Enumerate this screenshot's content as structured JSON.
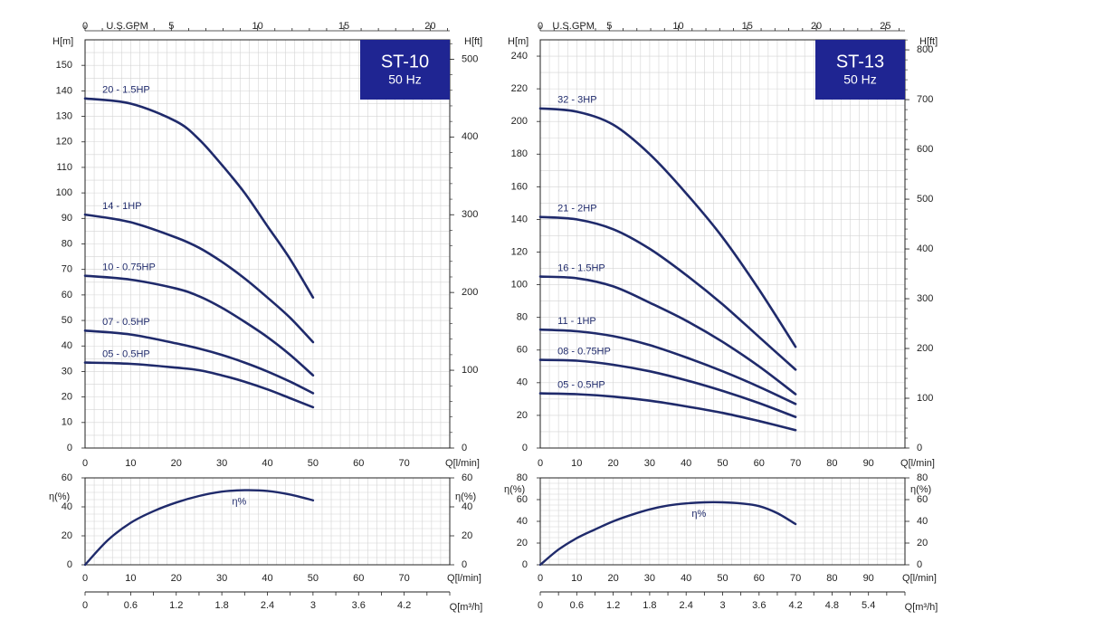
{
  "colors": {
    "curve": "#1f2a6b",
    "badge": "#1f2592",
    "grid": "#d4d4d4",
    "axis": "#222222",
    "label": "#1f2a6b",
    "text": "#222222"
  },
  "chart_data": [
    {
      "type": "line",
      "model": "ST-10",
      "frequency": "50 Hz",
      "ylabel_left": "H[m]",
      "ylabel_right": "H[ft]",
      "xlabel": "Q[l/min]",
      "xlabel_top": "U.S.GPM",
      "xlim": [
        0,
        80
      ],
      "ylim": [
        0,
        160
      ],
      "yticks": [
        0,
        10,
        20,
        30,
        40,
        50,
        60,
        70,
        80,
        90,
        100,
        110,
        120,
        130,
        140,
        150
      ],
      "xticks": [
        10,
        20,
        30,
        40,
        50,
        60,
        70
      ],
      "gpm_ticks": [
        0,
        5,
        10,
        15,
        20
      ],
      "ft_ticks": [
        0,
        100,
        200,
        300,
        400,
        500
      ],
      "series": [
        {
          "name": "20 - 1.5HP",
          "x": [
            0,
            10,
            20,
            25,
            30,
            35,
            40,
            45,
            50
          ],
          "y": [
            137,
            135,
            128,
            121,
            111,
            100,
            87,
            74,
            59
          ]
        },
        {
          "name": "14 - 1HP",
          "x": [
            0,
            10,
            20,
            25,
            30,
            35,
            40,
            45,
            50
          ],
          "y": [
            91.5,
            88.5,
            82.5,
            78.5,
            73,
            66.5,
            59,
            51,
            41.5
          ]
        },
        {
          "name": "10 - 0.75HP",
          "x": [
            0,
            10,
            20,
            25,
            30,
            35,
            40,
            45,
            50
          ],
          "y": [
            67.5,
            66,
            62.5,
            59.5,
            55,
            49.5,
            43.5,
            36.5,
            28.5
          ]
        },
        {
          "name": "07 - 0.5HP",
          "x": [
            0,
            10,
            20,
            25,
            30,
            35,
            40,
            45,
            50
          ],
          "y": [
            46,
            44.5,
            41,
            39,
            36.5,
            33.5,
            30,
            26,
            21.5
          ]
        },
        {
          "name": "05 - 0.5HP",
          "x": [
            0,
            10,
            20,
            25,
            30,
            35,
            40,
            45,
            50
          ],
          "y": [
            33.5,
            33,
            31.5,
            30.5,
            28.5,
            26,
            23,
            19.5,
            16
          ]
        }
      ],
      "efficiency": {
        "label": "η%",
        "ylabel": "η(%)",
        "xlabel": "Q[l/min]",
        "ylim": [
          0,
          60
        ],
        "yticks": [
          0,
          20,
          40,
          60
        ],
        "xticks": [
          0,
          10,
          20,
          30,
          40,
          50,
          60,
          70
        ],
        "x": [
          0,
          5,
          10,
          15,
          20,
          25,
          30,
          35,
          40,
          45,
          50
        ],
        "y": [
          0,
          17,
          29,
          37,
          43,
          47.5,
          50.5,
          51.5,
          51,
          48.5,
          44.5
        ]
      },
      "m3h_axis": {
        "xlabel": "Q[m³/h]",
        "ticks": [
          "0",
          "0.6",
          "1.2",
          "1.8",
          "2.4",
          "3",
          "3.6",
          "4.2"
        ]
      }
    },
    {
      "type": "line",
      "model": "ST-13",
      "frequency": "50 Hz",
      "ylabel_left": "H[m]",
      "ylabel_right": "H[ft]",
      "xlabel": "Q[l/min]",
      "xlabel_top": "U.S.GPM",
      "xlim": [
        0,
        100
      ],
      "ylim": [
        0,
        250
      ],
      "yticks": [
        0,
        20,
        40,
        60,
        80,
        100,
        120,
        140,
        160,
        180,
        200,
        220,
        240
      ],
      "xticks": [
        10,
        20,
        30,
        40,
        50,
        60,
        70,
        80,
        90
      ],
      "gpm_ticks": [
        0,
        5,
        10,
        15,
        20,
        25
      ],
      "ft_ticks": [
        0,
        100,
        200,
        300,
        400,
        500,
        600,
        700,
        800
      ],
      "series": [
        {
          "name": "32 - 3HP",
          "x": [
            0,
            10,
            20,
            30,
            40,
            50,
            60,
            70
          ],
          "y": [
            208,
            206,
            198,
            180,
            156,
            129,
            97,
            62
          ]
        },
        {
          "name": "21 - 2HP",
          "x": [
            0,
            10,
            20,
            30,
            40,
            50,
            60,
            70
          ],
          "y": [
            141.5,
            140,
            134,
            122,
            106,
            88,
            68,
            48
          ]
        },
        {
          "name": "16 - 1.5HP",
          "x": [
            0,
            10,
            20,
            30,
            40,
            50,
            60,
            70
          ],
          "y": [
            105,
            104,
            99,
            89,
            78,
            65,
            50,
            33
          ]
        },
        {
          "name": "11 - 1HP",
          "x": [
            0,
            10,
            20,
            30,
            40,
            50,
            60,
            70
          ],
          "y": [
            72.5,
            71.5,
            68.5,
            63,
            55.5,
            47,
            37.5,
            27
          ]
        },
        {
          "name": "08 - 0.75HP",
          "x": [
            0,
            10,
            20,
            30,
            40,
            50,
            60,
            70
          ],
          "y": [
            54,
            53.5,
            51,
            47,
            41.5,
            35,
            27.5,
            19
          ]
        },
        {
          "name": "05 - 0.5HP",
          "x": [
            0,
            10,
            20,
            30,
            40,
            50,
            60,
            70
          ],
          "y": [
            33.5,
            33,
            31.5,
            29,
            25.5,
            21.5,
            16.5,
            11
          ]
        }
      ],
      "efficiency": {
        "label": "η%",
        "ylabel": "η(%)",
        "xlabel": "Q[l/min]",
        "ylim": [
          0,
          80
        ],
        "yticks": [
          0,
          20,
          40,
          60,
          80
        ],
        "xticks": [
          0,
          10,
          20,
          30,
          40,
          50,
          60,
          70,
          80,
          90
        ],
        "x": [
          0,
          5,
          10,
          15,
          20,
          25,
          30,
          35,
          40,
          45,
          50,
          55,
          60,
          65,
          70
        ],
        "y": [
          0,
          14,
          24.5,
          32.5,
          40,
          46,
          51,
          54.5,
          56.5,
          57.5,
          57.5,
          56.5,
          54,
          47.5,
          37.5
        ]
      },
      "m3h_axis": {
        "xlabel": "Q[m³/h]",
        "ticks": [
          "0",
          "0.6",
          "1.2",
          "1.8",
          "2.4",
          "3",
          "3.6",
          "4.2",
          "4.8",
          "5.4"
        ]
      }
    }
  ]
}
